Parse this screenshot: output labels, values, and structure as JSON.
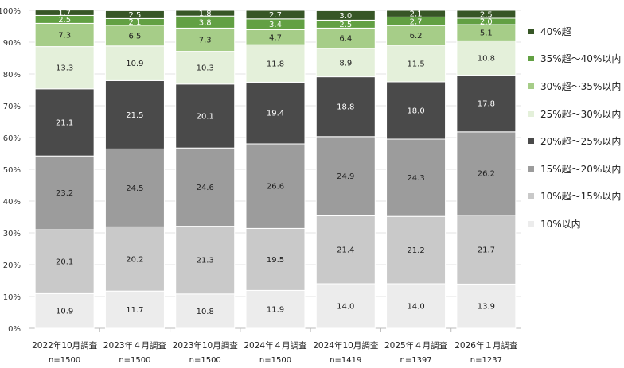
{
  "chart_data": {
    "type": "bar",
    "stacked": true,
    "categories": [
      "2022年10月調査",
      "2023年４月調査",
      "2023年10月調査",
      "2024年４月調査",
      "2024年10月調査",
      "2025年４月調査",
      "2026年１月調査"
    ],
    "sample_sizes": [
      "n=1500",
      "n=1500",
      "n=1500",
      "n=1500",
      "n=1419",
      "n=1397",
      "n=1237"
    ],
    "ylim": [
      0,
      100
    ],
    "yticks": [
      "0%",
      "10%",
      "20%",
      "30%",
      "40%",
      "50%",
      "60%",
      "70%",
      "80%",
      "90%",
      "100%"
    ],
    "grid": true,
    "legend_position": "right",
    "series": [
      {
        "name": "10%以内",
        "color": "#ececec",
        "values": [
          10.9,
          11.7,
          10.8,
          11.9,
          14.0,
          14.0,
          13.9
        ]
      },
      {
        "name": "10%超～15%以内",
        "color": "#c9c9c9",
        "values": [
          20.1,
          20.2,
          21.3,
          19.5,
          21.4,
          21.2,
          21.7
        ]
      },
      {
        "name": "15%超～20%以内",
        "color": "#9c9c9c",
        "values": [
          23.2,
          24.5,
          24.6,
          26.6,
          24.9,
          24.3,
          26.2
        ]
      },
      {
        "name": "20%超～25%以内",
        "color": "#4a4a4a",
        "values": [
          21.1,
          21.5,
          20.1,
          19.4,
          18.8,
          18.0,
          17.8
        ]
      },
      {
        "name": "25%超～30%以内",
        "color": "#e4f0da",
        "values": [
          13.3,
          10.9,
          10.3,
          11.8,
          8.9,
          11.5,
          10.8
        ]
      },
      {
        "name": "30%超～35%以内",
        "color": "#a6cd88",
        "values": [
          7.3,
          6.5,
          7.3,
          4.7,
          6.4,
          6.2,
          5.1
        ]
      },
      {
        "name": "35%超～40%以内",
        "color": "#62a043",
        "values": [
          2.5,
          2.1,
          3.8,
          3.4,
          2.5,
          2.7,
          2.0
        ]
      },
      {
        "name": "40%超",
        "color": "#375626",
        "values": [
          1.7,
          2.5,
          1.8,
          2.7,
          3.0,
          2.1,
          2.5
        ]
      }
    ]
  }
}
